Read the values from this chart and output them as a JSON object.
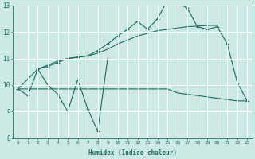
{
  "xlabel": "Humidex (Indice chaleur)",
  "xlim": [
    -0.5,
    23.5
  ],
  "ylim": [
    8,
    13
  ],
  "xticks": [
    0,
    1,
    2,
    3,
    4,
    5,
    6,
    7,
    8,
    9,
    10,
    11,
    12,
    13,
    14,
    15,
    16,
    17,
    18,
    19,
    20,
    21,
    22,
    23
  ],
  "yticks": [
    8,
    9,
    10,
    11,
    12,
    13
  ],
  "bg_color": "#cce9e5",
  "line_color": "#1a6b5e",
  "grid_color": "#ffffff",
  "series": [
    {
      "x": [
        0,
        1,
        2,
        3,
        4,
        5,
        6,
        7,
        8,
        9
      ],
      "y": [
        9.85,
        9.6,
        10.6,
        10.0,
        9.65,
        9.0,
        10.2,
        9.1,
        8.25,
        11.0
      ],
      "marker": true
    },
    {
      "x": [
        0,
        1,
        2,
        3,
        4,
        5,
        6,
        7,
        8,
        9,
        10,
        11,
        12,
        13,
        14,
        15,
        16,
        17,
        18,
        19,
        20,
        21,
        22,
        23
      ],
      "y": [
        9.85,
        9.85,
        9.85,
        9.85,
        9.85,
        9.85,
        9.85,
        9.85,
        9.85,
        9.85,
        9.85,
        9.85,
        9.85,
        9.85,
        9.85,
        9.85,
        9.7,
        9.65,
        9.6,
        9.55,
        9.5,
        9.45,
        9.4,
        9.4
      ],
      "marker": false
    },
    {
      "x": [
        0,
        2,
        3,
        4,
        5,
        6,
        7,
        8,
        9,
        10,
        11,
        12,
        13,
        14,
        15,
        16,
        17,
        18,
        19,
        20
      ],
      "y": [
        9.85,
        10.6,
        10.75,
        10.9,
        11.0,
        11.05,
        11.1,
        11.2,
        11.35,
        11.55,
        11.7,
        11.85,
        11.95,
        12.05,
        12.1,
        12.15,
        12.2,
        12.22,
        12.25,
        12.25
      ],
      "marker": false
    },
    {
      "x": [
        2,
        3,
        4,
        5,
        6,
        7,
        8,
        9,
        10,
        11,
        12,
        13,
        14,
        15,
        16,
        17,
        18,
        19,
        20,
        21,
        22,
        23
      ],
      "y": [
        10.6,
        10.7,
        10.85,
        11.0,
        11.05,
        11.1,
        11.3,
        11.55,
        11.85,
        12.1,
        12.4,
        12.1,
        12.5,
        13.2,
        13.1,
        12.9,
        12.2,
        12.1,
        12.2,
        11.55,
        10.1,
        9.4
      ],
      "marker": true
    }
  ]
}
